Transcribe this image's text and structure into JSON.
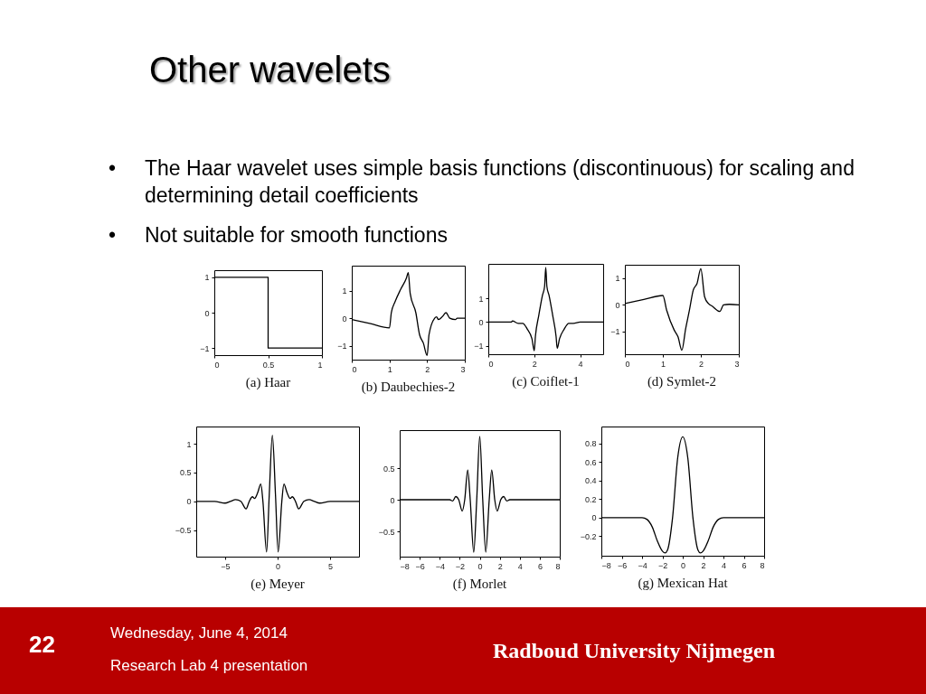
{
  "chart_data": [
    {
      "type": "other",
      "title": "Other wavelets",
      "annotations": [
        "•\tThe Haar wavelet uses simple basis functions (discontinuous) for scaling and determining detail coefficients",
        "•\tNot suitable for smooth functions",
        "22",
        "Wednesday, June 4, 2014",
        "Research Lab 4 presentation",
        "Radboud University Nijmegen"
      ]
    },
    {
      "type": "step",
      "title": "(a) Haar",
      "x": [
        0,
        0.5,
        1
      ],
      "values": [
        1,
        -1,
        -1
      ],
      "color": "#000000",
      "xlim": [
        0,
        1
      ],
      "xticks": [
        0,
        0.5,
        1
      ],
      "ylim": [
        -1.2,
        1.2
      ],
      "yticks": [
        -1,
        0,
        1
      ]
    },
    {
      "type": "line",
      "title": "(b) Daubechies-2",
      "x": [
        0,
        0.5,
        1,
        1.05,
        1.15,
        1.3,
        1.45,
        1.5,
        1.55,
        1.7,
        1.8,
        1.9,
        2,
        2.05,
        2.2,
        2.25,
        2.3,
        2.4,
        2.5,
        2.6,
        2.75,
        2.8,
        3
      ],
      "values": [
        -0.05,
        -0.2,
        -0.35,
        0.2,
        0.6,
        1.05,
        1.45,
        1.65,
        0.9,
        0.2,
        -0.6,
        -0.9,
        -1.35,
        -0.6,
        0,
        0.05,
        -0.05,
        0.05,
        0.2,
        0,
        -0.05,
        0,
        0
      ],
      "color": "#000000",
      "xlim": [
        0,
        3
      ],
      "xticks": [
        0,
        1,
        2,
        3
      ],
      "ylim": [
        -1.5,
        1.9
      ],
      "yticks": [
        -1,
        0,
        1
      ]
    },
    {
      "type": "line",
      "title": "(c) Coiflet-1",
      "x": [
        0,
        1,
        1.05,
        1.3,
        1.5,
        1.7,
        1.9,
        2,
        2.05,
        2.2,
        2.35,
        2.45,
        2.5,
        2.55,
        2.65,
        2.8,
        2.95,
        3,
        3.1,
        3.3,
        3.5,
        3.7,
        4,
        5
      ],
      "values": [
        0,
        0,
        0.05,
        -0.05,
        -0.05,
        -0.3,
        -0.7,
        -1.2,
        -0.6,
        0.3,
        1.1,
        1.5,
        2.3,
        1.5,
        1.1,
        0.3,
        -0.6,
        -1.1,
        -0.7,
        -0.3,
        -0.05,
        -0.05,
        0,
        0
      ],
      "color": "#000000",
      "xlim": [
        0,
        5
      ],
      "xticks": [
        0,
        2,
        4
      ],
      "ylim": [
        -1.35,
        2.45
      ],
      "yticks": [
        -1,
        0,
        1
      ]
    },
    {
      "type": "line",
      "title": "(d) Symlet-2",
      "x": [
        0,
        0.5,
        1,
        1.1,
        1.3,
        1.4,
        1.5,
        1.6,
        1.7,
        1.8,
        1.9,
        2,
        2.1,
        2.2,
        2.3,
        2.5,
        2.6,
        2.75,
        3
      ],
      "values": [
        0.05,
        0.2,
        0.35,
        -0.2,
        -0.95,
        -1.2,
        -1.7,
        -0.9,
        -0.2,
        0.55,
        0.8,
        1.35,
        0.3,
        0.05,
        -0.05,
        -0.25,
        0,
        0.02,
        0
      ],
      "color": "#000000",
      "xlim": [
        0,
        3
      ],
      "xticks": [
        0,
        1,
        2,
        3
      ],
      "ylim": [
        -1.85,
        1.5
      ],
      "yticks": [
        -1,
        0,
        1
      ]
    },
    {
      "type": "line",
      "title": "(e) Meyer",
      "x": [
        -7.75,
        -6,
        -5,
        -4.5,
        -4,
        -3.5,
        -3,
        -2.7,
        -2.4,
        -2.2,
        -1.9,
        -1.6,
        -1.4,
        -1.05,
        -0.8,
        -0.5,
        -0.2,
        0.05,
        0.4,
        0.6,
        0.9,
        1.2,
        1.4,
        1.7,
        2,
        2.5,
        3,
        3.5,
        4,
        5,
        7.75
      ],
      "values": [
        0,
        0,
        -0.03,
        0,
        0.03,
        0,
        -0.13,
        0,
        0.08,
        0.05,
        0.15,
        0.3,
        0,
        -0.88,
        0.1,
        1.15,
        0.1,
        -0.88,
        0,
        0.3,
        0.15,
        0.05,
        0.08,
        0,
        -0.13,
        0,
        0.03,
        0,
        -0.03,
        0,
        0
      ],
      "color": "#000000",
      "xlim": [
        -7.75,
        7.75
      ],
      "xticks": [
        -5,
        0,
        5
      ],
      "ylim": [
        -0.96,
        1.3
      ],
      "yticks": [
        -0.5,
        0,
        0.5,
        1
      ]
    },
    {
      "type": "line",
      "title": "(f) Morlet",
      "x": [
        -8,
        -3,
        -2.7,
        -2.4,
        -2.1,
        -1.75,
        -1.5,
        -1.2,
        -0.95,
        -0.6,
        -0.3,
        0,
        0.3,
        0.6,
        0.95,
        1.2,
        1.5,
        1.75,
        2.1,
        2.4,
        2.7,
        3,
        8
      ],
      "values": [
        0,
        0,
        -0.02,
        0.05,
        0,
        -0.18,
        0,
        0.47,
        0,
        -0.83,
        0,
        1,
        0,
        -0.83,
        0,
        0.47,
        0,
        -0.18,
        0,
        0.05,
        -0.02,
        0,
        0
      ],
      "color": "#000000",
      "xlim": [
        -8,
        8
      ],
      "xticks": [
        -8,
        -6,
        -4,
        -2,
        0,
        2,
        4,
        6,
        8
      ],
      "ylim": [
        -0.9,
        1.1
      ],
      "yticks": [
        -0.5,
        0,
        0.5
      ]
    },
    {
      "type": "line",
      "title": "(g) Mexican Hat",
      "x": [
        -8,
        -4,
        -3.5,
        -3,
        -2.5,
        -2,
        -1.73,
        -1.5,
        -1,
        -0.5,
        0,
        0.5,
        1,
        1.5,
        1.73,
        2,
        2.5,
        3,
        3.5,
        4,
        8
      ],
      "values": [
        0,
        0,
        -0.02,
        -0.1,
        -0.25,
        -0.36,
        -0.38,
        -0.35,
        0,
        0.64,
        0.87,
        0.64,
        0,
        -0.35,
        -0.38,
        -0.36,
        -0.25,
        -0.1,
        -0.02,
        0,
        0
      ],
      "color": "#000000",
      "xlim": [
        -8,
        8
      ],
      "xticks": [
        -8,
        -6,
        -4,
        -2,
        0,
        2,
        4,
        6,
        8
      ],
      "ylim": [
        -0.41,
        0.98
      ],
      "yticks": [
        -0.2,
        0,
        0.2,
        0.4,
        0.6,
        0.8
      ]
    }
  ]
}
